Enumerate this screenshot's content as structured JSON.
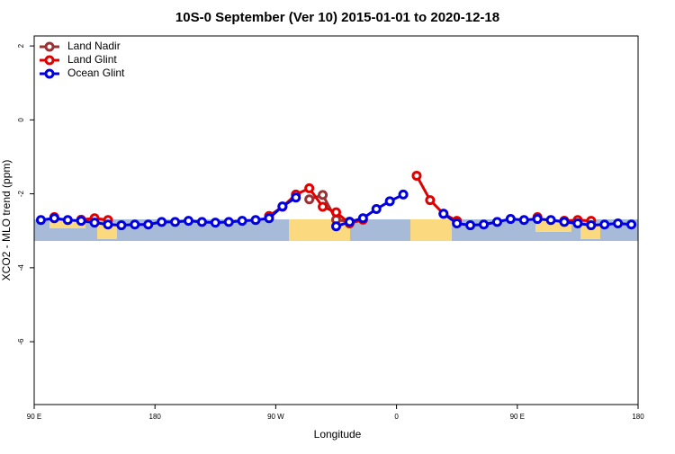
{
  "chart_data": {
    "type": "line",
    "title": "10S-0 September (Ver 10)   2015-01-01 to 2020-12-18",
    "x_label": "Longitude",
    "y_label": "XCO2 - MLO trend (ppm)",
    "x": [
      95,
      105,
      115,
      125,
      135,
      145,
      155,
      165,
      175,
      185,
      195,
      205,
      215,
      225,
      235,
      245,
      255,
      265,
      275,
      285,
      295,
      305,
      315,
      325,
      335,
      345,
      355,
      365,
      375,
      385,
      395,
      405,
      415,
      425,
      435,
      445,
      455,
      465,
      475,
      485,
      495,
      505,
      515,
      525,
      535
    ],
    "series": [
      {
        "name": "Land Nadir",
        "color": "#993333",
        "values": [
          null,
          null,
          null,
          -2.73,
          null,
          null,
          null,
          null,
          null,
          null,
          null,
          null,
          null,
          null,
          null,
          null,
          null,
          null,
          null,
          null,
          -2.15,
          -2.03,
          -2.7,
          -2.75,
          null,
          null,
          null,
          null,
          null,
          null,
          null,
          null,
          null,
          null,
          null,
          null,
          null,
          null,
          null,
          -2.73,
          null,
          null,
          null,
          null,
          null
        ]
      },
      {
        "name": "Land Glint",
        "color": "#e00000",
        "values": [
          null,
          -2.63,
          null,
          -2.7,
          -2.66,
          -2.71,
          null,
          null,
          null,
          null,
          null,
          null,
          null,
          null,
          null,
          null,
          null,
          -2.6,
          -2.35,
          -2.02,
          -1.85,
          -2.35,
          -2.5,
          -2.8,
          -2.7,
          null,
          null,
          null,
          -1.51,
          -2.17,
          -2.54,
          -2.73,
          null,
          null,
          null,
          null,
          null,
          -2.63,
          null,
          -2.73,
          -2.71,
          -2.73,
          null,
          null,
          null
        ]
      },
      {
        "name": "Ocean Glint",
        "color": "#0000e0",
        "values": [
          -2.71,
          -2.66,
          -2.71,
          -2.73,
          -2.78,
          -2.83,
          -2.85,
          -2.83,
          -2.83,
          -2.76,
          -2.76,
          -2.73,
          -2.76,
          -2.78,
          -2.76,
          -2.73,
          -2.71,
          -2.66,
          -2.34,
          -2.1,
          null,
          null,
          -2.88,
          -2.76,
          -2.66,
          -2.41,
          -2.2,
          -2.02,
          null,
          null,
          -2.54,
          -2.8,
          -2.85,
          -2.83,
          -2.76,
          -2.68,
          -2.71,
          -2.68,
          -2.71,
          -2.76,
          -2.8,
          -2.85,
          -2.83,
          -2.8,
          -2.83
        ]
      }
    ],
    "xlim": [
      90,
      540
    ],
    "xticks": [
      {
        "value": 90,
        "label": "90 E"
      },
      180,
      {
        "value": 270,
        "label": "90 W"
      },
      {
        "value": 360,
        "label": "0"
      },
      {
        "value": 450,
        "label": "90 E"
      },
      {
        "value": 540,
        "label": "180"
      }
    ],
    "ylim": [
      -7.7,
      2.27
    ],
    "yticks": [
      -6,
      -4,
      -2,
      0,
      2
    ],
    "grid": false,
    "legend": "top-left"
  }
}
